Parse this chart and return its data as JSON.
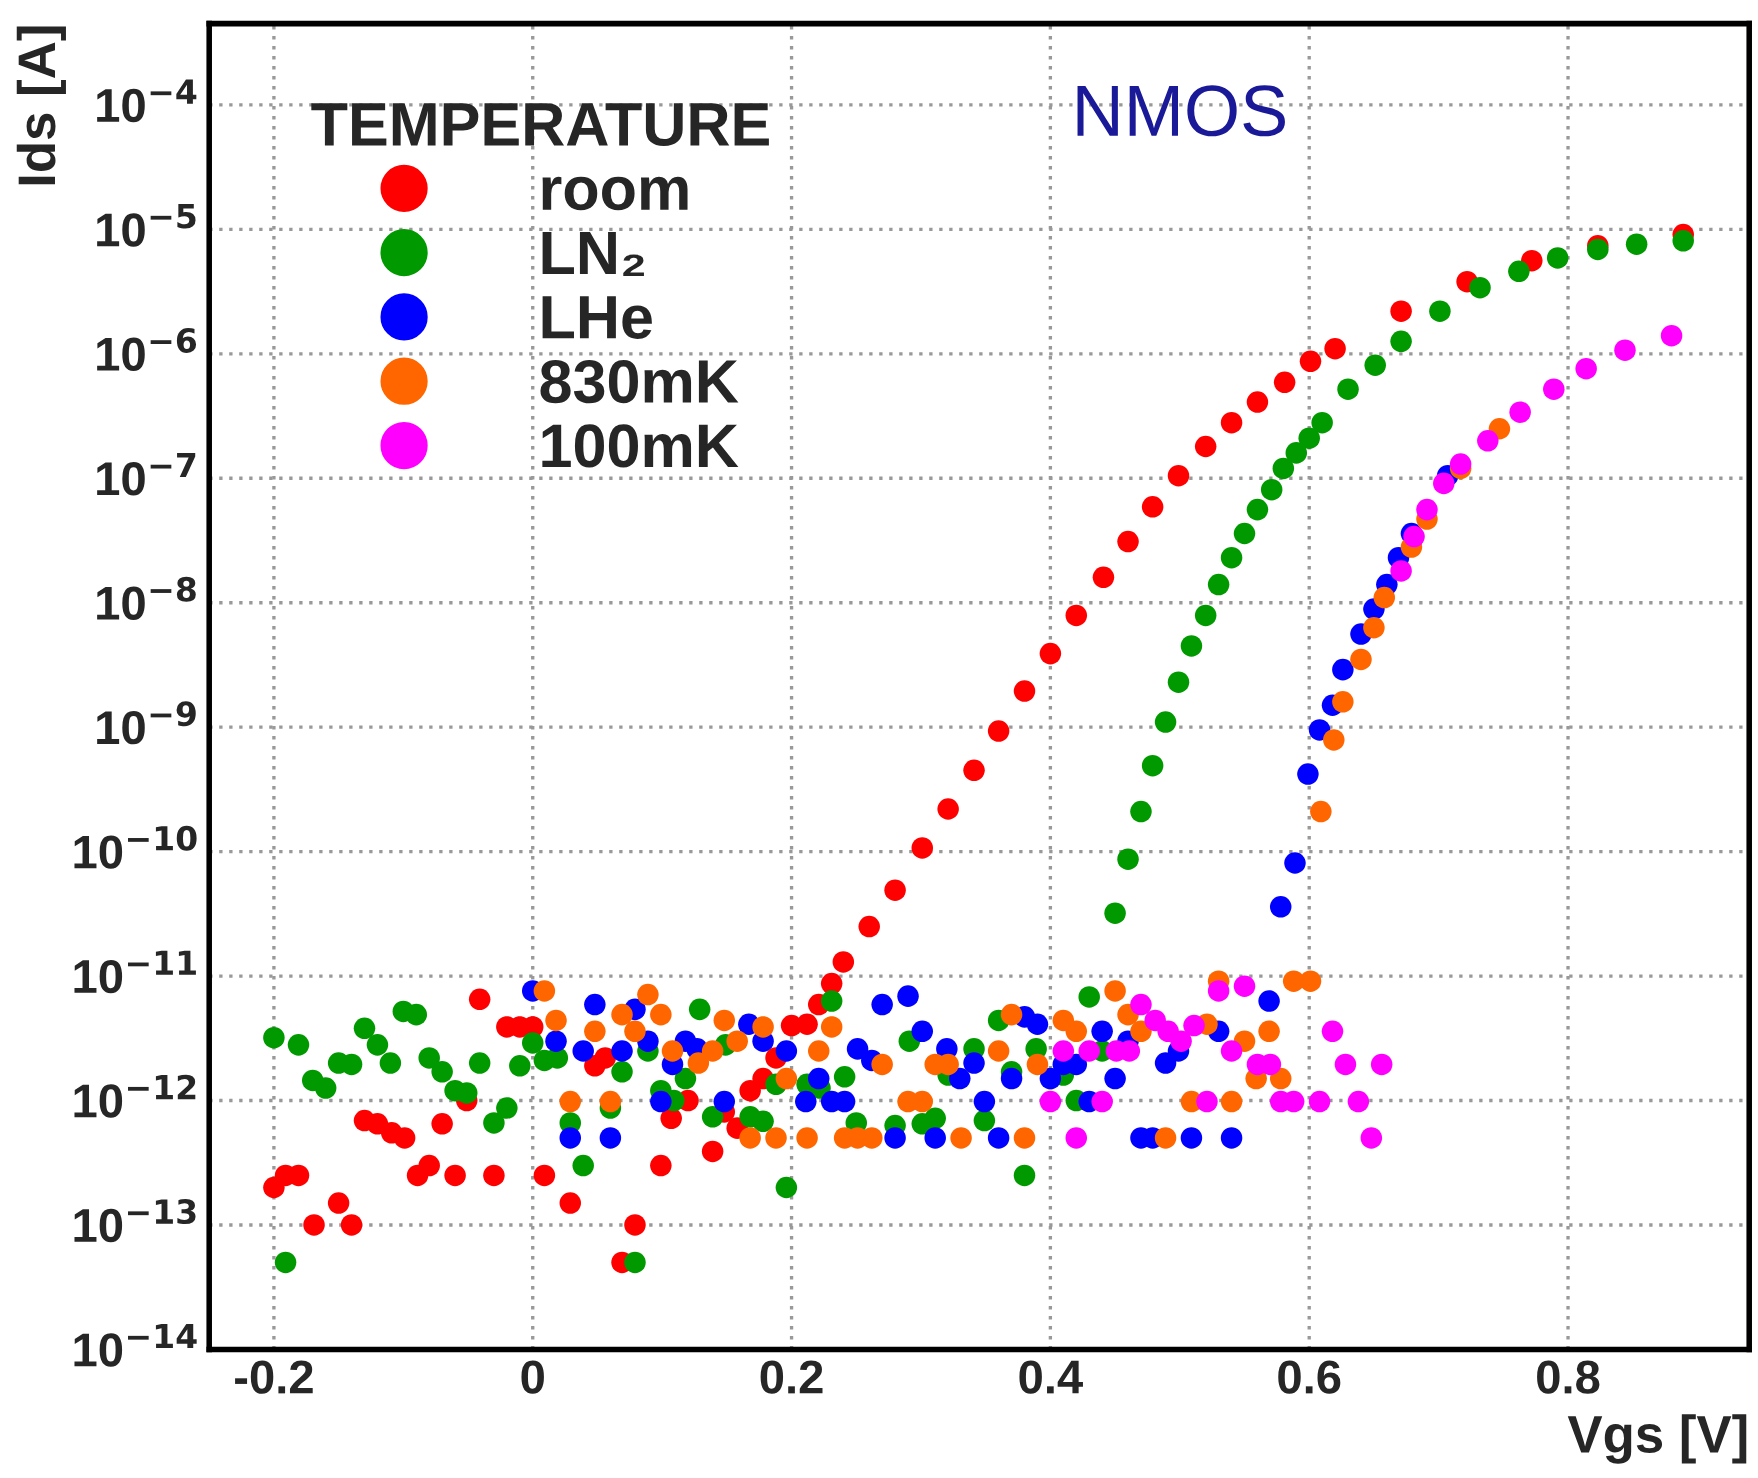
{
  "chart_data": {
    "type": "scatter",
    "xlabel": "Vgs [V]",
    "ylabel": "Ids [A]",
    "legend_title": "TEMPERATURE",
    "legend": "top left",
    "grid": true,
    "log": "y",
    "marker": "circle",
    "annotations": [
      "NMOS"
    ],
    "xlim": [
      -0.25,
      0.94
    ],
    "ylim": [
      1e-14,
      0.00045
    ],
    "xticks": [
      {
        "value": -0.2,
        "label": "-0.2"
      },
      {
        "value": 0,
        "label": "0"
      },
      {
        "value": 0.2,
        "label": "0.2"
      },
      {
        "value": 0.4,
        "label": "0.4"
      },
      {
        "value": 0.6,
        "label": "0.6"
      },
      {
        "value": 0.8,
        "label": "0.8"
      }
    ],
    "yticks": [
      {
        "value": 1e-14,
        "label": "10$^{−14}$"
      },
      {
        "value": 1e-13,
        "label": "10$^{−13}$"
      },
      {
        "value": 1e-12,
        "label": "10$^{−12}$"
      },
      {
        "value": 1e-11,
        "label": "10$^{−11}$"
      },
      {
        "value": 1e-10,
        "label": "10$^{−10}$"
      },
      {
        "value": 1e-09,
        "label": "10$^{−9}$"
      },
      {
        "value": 1e-08,
        "label": "10$^{−8}$"
      },
      {
        "value": 1e-07,
        "label": "10$^{−7}$"
      },
      {
        "value": 1e-06,
        "label": "10$^{−6}$"
      },
      {
        "value": 1e-05,
        "label": "10$^{−5}$"
      },
      {
        "value": 0.0001,
        "label": "10$^{−4}$"
      }
    ],
    "series": [
      {
        "name": "room",
        "color": "#ff0000",
        "x": [
          -0.2,
          -0.191,
          -0.181,
          -0.169,
          -0.15,
          -0.14,
          -0.13,
          -0.12,
          -0.109,
          -0.099,
          -0.089,
          -0.08,
          -0.07,
          -0.06,
          -0.051,
          -0.041,
          -0.03,
          -0.02,
          -0.01,
          0,
          0.009,
          0.029,
          0.048,
          0.056,
          0.069,
          0.079,
          0.099,
          0.107,
          0.12,
          0.139,
          0.148,
          0.158,
          0.168,
          0.178,
          0.188,
          0.2,
          0.212,
          0.221,
          0.231,
          0.24,
          0.26,
          0.28,
          0.301,
          0.321,
          0.341,
          0.36,
          0.38,
          0.4,
          0.42,
          0.441,
          0.46,
          0.479,
          0.499,
          0.52,
          0.54,
          0.56,
          0.581,
          0.601,
          0.62,
          0.671,
          0.722,
          0.772,
          0.823,
          0.889
        ],
        "values": [
          2e-13,
          2.5e-13,
          2.5e-13,
          1e-13,
          1.5e-13,
          1e-13,
          6.9e-13,
          6.5e-13,
          5.5e-13,
          5e-13,
          2.5e-13,
          3e-13,
          6.5e-13,
          2.5e-13,
          1e-12,
          6.5e-12,
          2.5e-13,
          3.9e-12,
          3.9e-12,
          3.9e-12,
          2.5e-13,
          1.5e-13,
          1.9e-12,
          2.2e-12,
          5e-14,
          1e-13,
          3e-13,
          7.2e-13,
          1e-12,
          3.9e-13,
          8.1e-13,
          6e-13,
          1.2e-12,
          1.5e-12,
          2.2e-12,
          4e-12,
          4.1e-12,
          5.9e-12,
          8.7e-12,
          1.3e-11,
          2.5e-11,
          4.9e-11,
          1.07e-10,
          2.2e-10,
          4.5e-10,
          9.3e-10,
          1.95e-09,
          3.9e-09,
          7.9e-09,
          1.6e-08,
          3.1e-08,
          5.9e-08,
          1.05e-07,
          1.8e-07,
          2.8e-07,
          4.1e-07,
          5.9e-07,
          8.7e-07,
          1.1e-06,
          2.2e-06,
          3.8e-06,
          5.6e-06,
          7.4e-06,
          9.1e-06
        ]
      },
      {
        "name": "LN₂",
        "color": "#009900",
        "x": [
          -0.2,
          -0.191,
          -0.181,
          -0.17,
          -0.16,
          -0.15,
          -0.14,
          -0.13,
          -0.12,
          -0.11,
          -0.1,
          -0.09,
          -0.08,
          -0.07,
          -0.06,
          -0.051,
          -0.041,
          -0.03,
          -0.02,
          -0.01,
          0,
          0.009,
          0.019,
          0.029,
          0.039,
          0.06,
          0.069,
          0.079,
          0.089,
          0.099,
          0.109,
          0.118,
          0.129,
          0.139,
          0.149,
          0.168,
          0.178,
          0.188,
          0.196,
          0.212,
          0.222,
          0.231,
          0.241,
          0.25,
          0.262,
          0.28,
          0.291,
          0.301,
          0.311,
          0.321,
          0.341,
          0.349,
          0.36,
          0.37,
          0.38,
          0.389,
          0.41,
          0.42,
          0.43,
          0.44,
          0.45,
          0.46,
          0.47,
          0.479,
          0.489,
          0.499,
          0.509,
          0.52,
          0.53,
          0.54,
          0.55,
          0.56,
          0.571,
          0.58,
          0.59,
          0.6,
          0.61,
          0.63,
          0.651,
          0.671,
          0.701,
          0.732,
          0.762,
          0.792,
          0.823,
          0.853,
          0.889
        ],
        "values": [
          3.2e-12,
          5e-14,
          2.8e-12,
          1.45e-12,
          1.26e-12,
          2e-12,
          1.95e-12,
          3.8e-12,
          2.8e-12,
          2e-12,
          5.2e-12,
          4.9e-12,
          2.2e-12,
          1.7e-12,
          1.2e-12,
          1.15e-12,
          2e-12,
          6.6e-13,
          8.7e-13,
          1.9e-12,
          2.9e-12,
          2.1e-12,
          2.2e-12,
          6.6e-13,
          3e-13,
          8.7e-13,
          1.7e-12,
          5e-14,
          2.5e-12,
          1.2e-12,
          1e-12,
          1.5e-12,
          5.4e-12,
          7.4e-13,
          2.8e-12,
          7.4e-13,
          6.8e-13,
          1.35e-12,
          2e-13,
          1.35e-12,
          1.26e-12,
          6.3e-12,
          1.55e-12,
          6.6e-13,
          null,
          6.3e-13,
          3e-12,
          6.5e-13,
          7.2e-13,
          1.6e-12,
          2.6e-12,
          6.9e-13,
          4.4e-12,
          1.7e-12,
          2.5e-13,
          2.6e-12,
          1.6e-12,
          1e-12,
          6.8e-12,
          2.5e-12,
          3.2e-11,
          8.7e-11,
          2.1e-10,
          4.9e-10,
          1.1e-09,
          2.3e-09,
          4.5e-09,
          7.9e-09,
          1.4e-08,
          2.3e-08,
          3.6e-08,
          5.6e-08,
          8.1e-08,
          1.2e-07,
          1.6e-07,
          2.1e-07,
          2.8e-07,
          5.2e-07,
          8.1e-07,
          1.26e-06,
          2.2e-06,
          3.4e-06,
          4.6e-06,
          5.9e-06,
          6.9e-06,
          7.6e-06,
          8.1e-06
        ]
      },
      {
        "name": "LHe",
        "color": "#0000ff",
        "x": [
          0,
          0.018,
          0.029,
          0.039,
          0.048,
          0.06,
          0.069,
          0.079,
          0.089,
          0.099,
          0.108,
          0.118,
          0.127,
          0.148,
          0.167,
          0.178,
          0.196,
          0.211,
          0.221,
          0.231,
          0.241,
          0.251,
          0.262,
          0.27,
          0.28,
          0.29,
          0.301,
          0.311,
          0.32,
          0.33,
          0.341,
          0.349,
          0.36,
          0.37,
          0.38,
          0.39,
          0.4,
          0.41,
          0.42,
          0.43,
          0.44,
          0.45,
          0.46,
          0.47,
          0.479,
          0.489,
          0.499,
          0.509,
          0.53,
          0.54,
          0.569,
          0.578,
          0.589,
          0.599,
          0.608,
          0.618,
          0.626,
          0.64,
          0.65,
          0.66,
          0.669,
          0.679,
          0.689,
          0.707
        ],
        "values": [
          7.6e-12,
          3e-12,
          5e-13,
          2.5e-12,
          5.9e-12,
          5e-13,
          2.5e-12,
          5.4e-12,
          3e-12,
          9.8e-13,
          1.95e-12,
          3e-12,
          2.6e-12,
          9.8e-13,
          4.1e-12,
          3e-12,
          2.5e-12,
          9.8e-13,
          1.5e-12,
          9.8e-13,
          9.8e-13,
          2.6e-12,
          2.1e-12,
          5.9e-12,
          5e-13,
          6.9e-12,
          3.6e-12,
          5e-13,
          2.6e-12,
          1.5e-12,
          2e-12,
          9.8e-13,
          5e-13,
          1.5e-12,
          4.7e-12,
          4.1e-12,
          1.5e-12,
          1.95e-12,
          1.95e-12,
          9.8e-13,
          3.6e-12,
          1.5e-12,
          3e-12,
          5e-13,
          5e-13,
          2e-12,
          2.5e-12,
          5e-13,
          3.6e-12,
          5e-13,
          6.3e-12,
          3.6e-11,
          8.1e-11,
          4.2e-10,
          9.5e-10,
          1.5e-09,
          2.9e-09,
          5.6e-09,
          8.9e-09,
          1.4e-08,
          2.3e-08,
          3.6e-08,
          null,
          1.05e-07
        ]
      },
      {
        "name": "830mK",
        "color": "#ff6600",
        "x": [
          0.009,
          0.018,
          0.029,
          0.048,
          0.06,
          0.069,
          0.079,
          0.089,
          0.099,
          0.108,
          0.128,
          0.139,
          0.148,
          0.158,
          0.168,
          0.178,
          0.188,
          0.196,
          0.212,
          0.221,
          0.231,
          0.241,
          0.251,
          0.262,
          0.27,
          0.29,
          0.301,
          0.311,
          0.321,
          0.331,
          0.36,
          0.37,
          0.38,
          0.39,
          0.41,
          0.42,
          0.45,
          0.46,
          0.47,
          0.489,
          0.499,
          0.509,
          0.521,
          0.53,
          0.54,
          0.55,
          0.559,
          0.569,
          0.578,
          0.588,
          0.601,
          0.609,
          0.619,
          0.626,
          0.64,
          0.65,
          0.658,
          0.679,
          0.691,
          0.717,
          0.747
        ],
        "values": [
          7.6e-12,
          4.4e-12,
          9.8e-13,
          3.6e-12,
          9.8e-13,
          4.9e-12,
          3.6e-12,
          7.1e-12,
          4.9e-12,
          2.5e-12,
          2e-12,
          2.5e-12,
          4.4e-12,
          3e-12,
          5e-13,
          3.9e-12,
          5e-13,
          1.5e-12,
          5e-13,
          2.5e-12,
          3.9e-12,
          5e-13,
          5e-13,
          5e-13,
          1.95e-12,
          9.8e-13,
          9.8e-13,
          1.95e-12,
          1.95e-12,
          5e-13,
          2.5e-12,
          4.9e-12,
          5e-13,
          1.95e-12,
          4.4e-12,
          3.6e-12,
          7.6e-12,
          4.9e-12,
          3.6e-12,
          5e-13,
          null,
          9.8e-13,
          4.1e-12,
          9.1e-12,
          9.8e-13,
          3e-12,
          1.5e-12,
          3.6e-12,
          1.5e-12,
          9.1e-12,
          9.1e-12,
          2.1e-10,
          7.9e-10,
          1.6e-09,
          3.5e-09,
          6.3e-09,
          1.1e-08,
          2.8e-08,
          4.7e-08,
          1.2e-07,
          2.5e-07
        ]
      },
      {
        "name": "100mK",
        "color": "#ff00ff",
        "x": [
          0.4,
          0.41,
          0.42,
          0.43,
          0.44,
          0.451,
          0.461,
          0.47,
          0.481,
          0.491,
          0.501,
          0.511,
          0.521,
          0.53,
          0.54,
          0.55,
          0.56,
          0.57,
          0.578,
          0.588,
          0.608,
          0.618,
          0.628,
          0.638,
          0.648,
          0.656,
          0.671,
          0.681,
          0.691,
          0.704,
          0.717,
          0.738,
          0.763,
          0.789,
          0.814,
          0.844,
          0.88
        ],
        "values": [
          9.8e-13,
          2.5e-12,
          5e-13,
          2.5e-12,
          9.8e-13,
          2.5e-12,
          2.5e-12,
          5.9e-12,
          4.4e-12,
          3.6e-12,
          3e-12,
          4e-12,
          9.8e-13,
          7.6e-12,
          2.5e-12,
          8.3e-12,
          1.95e-12,
          1.95e-12,
          9.8e-13,
          9.8e-13,
          9.8e-13,
          3.6e-12,
          1.95e-12,
          9.8e-13,
          5e-13,
          1.95e-12,
          1.8e-08,
          3.4e-08,
          5.6e-08,
          9.1e-08,
          1.3e-07,
          2e-07,
          3.4e-07,
          5.2e-07,
          7.6e-07,
          1.07e-06,
          1.4e-06
        ]
      }
    ]
  }
}
